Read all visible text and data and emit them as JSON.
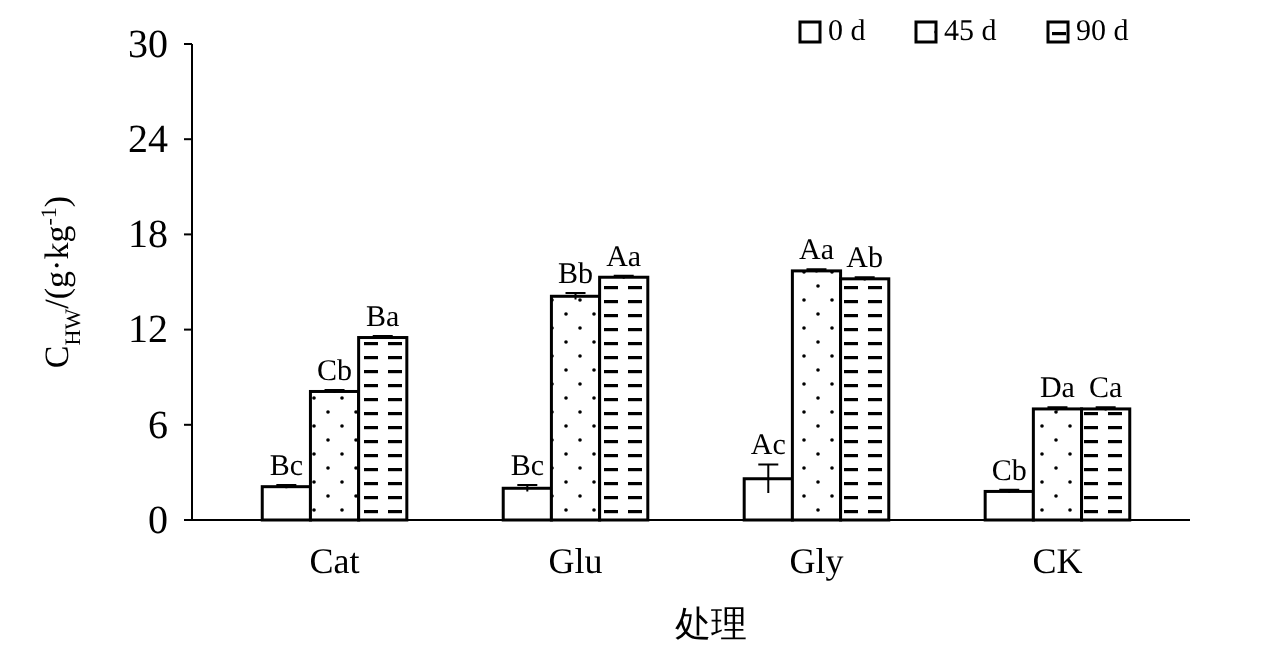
{
  "chart_data": {
    "type": "bar",
    "xlabel": "处理",
    "ylabel": "C$_{HW}$/(g·kg$^{-1}$)",
    "categories": [
      "Cat",
      "Glu",
      "Gly",
      "CK"
    ],
    "series": [
      {
        "name": "0 d",
        "color": "#ffffff",
        "values": [
          2.1,
          2.0,
          2.6,
          1.8
        ],
        "errors": [
          0.1,
          0.2,
          0.9,
          0.1
        ],
        "value_labels": [
          "Bc",
          "Bc",
          "Ac",
          "Cb"
        ]
      },
      {
        "name": "45 d",
        "color": "#ffffff",
        "values": [
          8.1,
          14.1,
          15.7,
          7.0
        ],
        "errors": [
          0.1,
          0.2,
          0.1,
          0.1
        ],
        "value_labels": [
          "Cb",
          "Bb",
          "Aa",
          "Da"
        ]
      },
      {
        "name": "90 d",
        "color": "#ffffff",
        "values": [
          11.5,
          15.3,
          15.2,
          7.0
        ],
        "errors": [
          0.1,
          0.1,
          0.1,
          0.1
        ],
        "value_labels": [
          "Ba",
          "Aa",
          "Ab",
          "Ca"
        ]
      }
    ],
    "ylim": [
      0,
      30
    ],
    "yticks": [
      0,
      6,
      12,
      18,
      24,
      30
    ],
    "legend": "top right"
  }
}
